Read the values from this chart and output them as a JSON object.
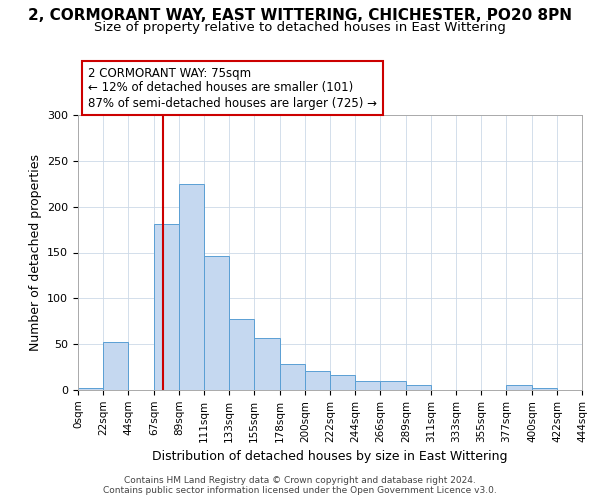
{
  "title1": "2, CORMORANT WAY, EAST WITTERING, CHICHESTER, PO20 8PN",
  "title2": "Size of property relative to detached houses in East Wittering",
  "xlabel": "Distribution of detached houses by size in East Wittering",
  "ylabel": "Number of detached properties",
  "bar_left_edges": [
    0,
    22,
    44,
    67,
    89,
    111,
    133,
    155,
    178,
    200,
    222,
    244,
    266,
    289,
    311,
    333,
    355,
    377,
    400,
    422
  ],
  "bar_widths": [
    22,
    22,
    23,
    22,
    22,
    22,
    22,
    23,
    22,
    22,
    22,
    22,
    23,
    22,
    22,
    22,
    22,
    23,
    22,
    22
  ],
  "bar_heights": [
    2,
    52,
    0,
    181,
    225,
    146,
    77,
    57,
    28,
    21,
    16,
    10,
    10,
    5,
    0,
    0,
    0,
    5,
    2,
    0
  ],
  "bar_color": "#c5d8f0",
  "bar_edge_color": "#5a9fd4",
  "tick_labels": [
    "0sqm",
    "22sqm",
    "44sqm",
    "67sqm",
    "89sqm",
    "111sqm",
    "133sqm",
    "155sqm",
    "178sqm",
    "200sqm",
    "222sqm",
    "244sqm",
    "266sqm",
    "289sqm",
    "311sqm",
    "333sqm",
    "355sqm",
    "377sqm",
    "400sqm",
    "422sqm",
    "444sqm"
  ],
  "ylim": [
    0,
    300
  ],
  "yticks": [
    0,
    50,
    100,
    150,
    200,
    250,
    300
  ],
  "vline_x": 75,
  "vline_color": "#cc0000",
  "annotation_title": "2 CORMORANT WAY: 75sqm",
  "annotation_line1": "← 12% of detached houses are smaller (101)",
  "annotation_line2": "87% of semi-detached houses are larger (725) →",
  "annotation_box_color": "#cc0000",
  "footer1": "Contains HM Land Registry data © Crown copyright and database right 2024.",
  "footer2": "Contains public sector information licensed under the Open Government Licence v3.0.",
  "bg_color": "#ffffff",
  "grid_color": "#ccd9e8",
  "title1_fontsize": 11,
  "title2_fontsize": 9.5
}
